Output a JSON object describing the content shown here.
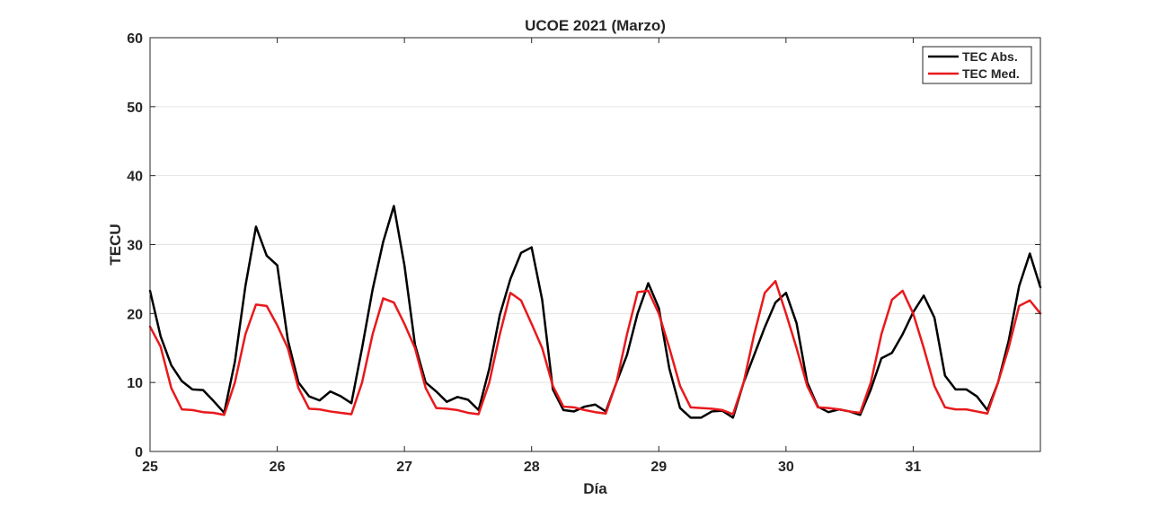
{
  "chart_data": {
    "type": "line",
    "title": "UCOE 2021 (Marzo)",
    "xlabel": "Día",
    "ylabel": "TECU",
    "xlim": [
      25,
      32
    ],
    "ylim": [
      0,
      60
    ],
    "xticks": [
      25,
      26,
      27,
      28,
      29,
      30,
      31
    ],
    "yticks": [
      0,
      10,
      20,
      30,
      40,
      50,
      60
    ],
    "grid": "horizontal",
    "legend_position": "top-right",
    "series": [
      {
        "name": "TEC Abs.",
        "color": "#000000",
        "x": [
          25,
          25.083,
          25.167,
          25.25,
          25.333,
          25.417,
          25.5,
          25.583,
          25.667,
          25.75,
          25.833,
          25.917,
          26,
          26.083,
          26.167,
          26.25,
          26.333,
          26.417,
          26.5,
          26.583,
          26.667,
          26.75,
          26.833,
          26.917,
          27,
          27.083,
          27.167,
          27.25,
          27.333,
          27.417,
          27.5,
          27.583,
          27.667,
          27.75,
          27.833,
          27.917,
          28,
          28.083,
          28.167,
          28.25,
          28.333,
          28.417,
          28.5,
          28.583,
          28.667,
          28.75,
          28.833,
          28.917,
          29,
          29.083,
          29.167,
          29.25,
          29.333,
          29.417,
          29.5,
          29.583,
          29.667,
          29.75,
          29.833,
          29.917,
          30,
          30.083,
          30.167,
          30.25,
          30.333,
          30.417,
          30.5,
          30.583,
          30.667,
          30.75,
          30.833,
          30.917,
          31,
          31.083,
          31.167,
          31.25,
          31.333,
          31.417,
          31.5,
          31.583,
          31.667,
          31.75,
          31.833,
          31.917,
          32
        ],
        "values": [
          23.3,
          16.7,
          12.5,
          10.2,
          9.0,
          8.9,
          7.3,
          5.6,
          13.0,
          24.0,
          32.6,
          28.4,
          27.0,
          16.2,
          10.0,
          8.0,
          7.4,
          8.7,
          8.0,
          7.0,
          15.0,
          23.5,
          30.4,
          35.6,
          27.0,
          15.5,
          10.0,
          8.7,
          7.2,
          7.9,
          7.5,
          6.0,
          12.0,
          19.8,
          25.0,
          28.8,
          29.6,
          22.0,
          9.0,
          6.0,
          5.8,
          6.5,
          6.8,
          5.8,
          10.0,
          14.0,
          20.0,
          24.4,
          20.8,
          12.0,
          6.3,
          4.9,
          4.9,
          5.8,
          5.9,
          4.9,
          10.0,
          14.0,
          18.0,
          21.6,
          23.0,
          18.6,
          10.0,
          6.5,
          5.7,
          6.1,
          5.8,
          5.3,
          9.0,
          13.5,
          14.3,
          17.0,
          20.2,
          22.6,
          19.4,
          11.0,
          9.0,
          9.0,
          8.0,
          6.0,
          10.0,
          16.0,
          24.0,
          28.7,
          23.8
        ]
      },
      {
        "name": "TEC Med.",
        "color": "#e8191c",
        "x": [
          25,
          25.083,
          25.167,
          25.25,
          25.333,
          25.417,
          25.5,
          25.583,
          25.667,
          25.75,
          25.833,
          25.917,
          26,
          26.083,
          26.167,
          26.25,
          26.333,
          26.417,
          26.5,
          26.583,
          26.667,
          26.75,
          26.833,
          26.917,
          27,
          27.083,
          27.167,
          27.25,
          27.333,
          27.417,
          27.5,
          27.583,
          27.667,
          27.75,
          27.833,
          27.917,
          28,
          28.083,
          28.167,
          28.25,
          28.333,
          28.417,
          28.5,
          28.583,
          28.667,
          28.75,
          28.833,
          28.917,
          29,
          29.083,
          29.167,
          29.25,
          29.333,
          29.417,
          29.5,
          29.583,
          29.667,
          29.75,
          29.833,
          29.917,
          30,
          30.083,
          30.167,
          30.25,
          30.333,
          30.417,
          30.5,
          30.583,
          30.667,
          30.75,
          30.833,
          30.917,
          31,
          31.083,
          31.167,
          31.25,
          31.333,
          31.417,
          31.5,
          31.583,
          31.667,
          31.75,
          31.833,
          31.917,
          32
        ],
        "values": [
          18.1,
          15.2,
          9.2,
          6.1,
          6.0,
          5.7,
          5.6,
          5.3,
          10.0,
          17.0,
          21.3,
          21.1,
          18.3,
          15.0,
          9.2,
          6.2,
          6.1,
          5.8,
          5.6,
          5.4,
          10.0,
          17.0,
          22.2,
          21.6,
          18.5,
          15.0,
          9.2,
          6.3,
          6.2,
          6.0,
          5.6,
          5.4,
          10.0,
          17.0,
          23.0,
          21.9,
          18.5,
          15.0,
          9.5,
          6.5,
          6.4,
          6.0,
          5.7,
          5.5,
          10.0,
          17.0,
          23.1,
          23.3,
          20.0,
          15.0,
          9.5,
          6.4,
          6.3,
          6.2,
          6.0,
          5.4,
          10.0,
          17.0,
          23.0,
          24.7,
          20.0,
          15.0,
          9.5,
          6.4,
          6.3,
          6.1,
          5.8,
          5.6,
          10.0,
          17.0,
          22.0,
          23.3,
          20.0,
          15.0,
          9.5,
          6.4,
          6.1,
          6.1,
          5.8,
          5.5,
          10.0,
          15.0,
          21.1,
          21.9,
          20.0
        ]
      }
    ]
  }
}
